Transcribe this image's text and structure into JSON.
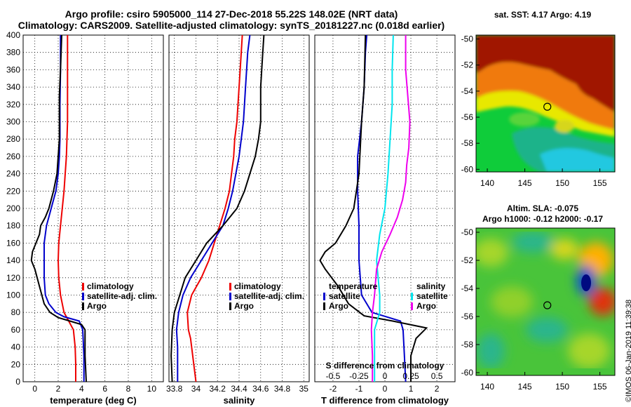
{
  "title_line1": "Argo profile: csiro 5905000_114 27-Dec-2018 55.22S 148.02E (NRT data)",
  "title_line2": "Climatology: CARS2009. Satellite-adjusted climatology: synTS_20181227.nc (0.018d earlier)",
  "credit": "©IMOS 06-Jan-2019 11:39:38",
  "colors": {
    "climatology": "#ee0000",
    "satellite": "#0000cc",
    "argo": "#000000",
    "t_diff": "#00e5ee",
    "s_diff": "#ee00ee"
  },
  "chart_data": [
    {
      "type": "line",
      "id": "temperature",
      "xlabel": "temperature (deg C)",
      "ylabel": "",
      "xlim": [
        -1,
        11
      ],
      "ylim": [
        400,
        0
      ],
      "xticks": [
        "0",
        "2",
        "4",
        "6",
        "8",
        "10"
      ],
      "xtick_values": [
        0,
        2,
        4,
        6,
        8,
        10
      ],
      "yticks": [
        "0",
        "20",
        "40",
        "60",
        "80",
        "100",
        "120",
        "140",
        "160",
        "180",
        "200",
        "220",
        "240",
        "260",
        "280",
        "300",
        "320",
        "340",
        "360",
        "380",
        "400"
      ],
      "ytick_values": [
        0,
        20,
        40,
        60,
        80,
        100,
        120,
        140,
        160,
        180,
        200,
        220,
        240,
        260,
        280,
        300,
        320,
        340,
        360,
        380,
        400
      ],
      "legend": [
        "climatology",
        "satellite-adj. clim.",
        "Argo"
      ],
      "series": [
        {
          "name": "climatology",
          "points": [
            [
              3.5,
              0
            ],
            [
              3.5,
              20
            ],
            [
              3.45,
              40
            ],
            [
              3.3,
              60
            ],
            [
              2.9,
              70
            ],
            [
              2.5,
              80
            ],
            [
              2.2,
              100
            ],
            [
              2.05,
              120
            ],
            [
              2.0,
              140
            ],
            [
              2.05,
              160
            ],
            [
              2.2,
              180
            ],
            [
              2.35,
              200
            ],
            [
              2.5,
              220
            ],
            [
              2.6,
              240
            ],
            [
              2.7,
              260
            ],
            [
              2.75,
              280
            ],
            [
              2.8,
              300
            ],
            [
              2.8,
              340
            ],
            [
              2.8,
              400
            ]
          ]
        },
        {
          "name": "satellite-adj. clim.",
          "points": [
            [
              4.2,
              0
            ],
            [
              4.2,
              30
            ],
            [
              4.1,
              60
            ],
            [
              3.8,
              70
            ],
            [
              2.5,
              75
            ],
            [
              1.8,
              80
            ],
            [
              1.2,
              90
            ],
            [
              0.9,
              100
            ],
            [
              0.8,
              120
            ],
            [
              0.8,
              160
            ],
            [
              1.0,
              180
            ],
            [
              1.4,
              200
            ],
            [
              1.8,
              220
            ],
            [
              2.0,
              240
            ],
            [
              2.1,
              260
            ],
            [
              2.15,
              280
            ],
            [
              2.15,
              320
            ],
            [
              2.2,
              360
            ],
            [
              2.2,
              400
            ]
          ]
        },
        {
          "name": "Argo",
          "points": [
            [
              4.4,
              0
            ],
            [
              4.3,
              30
            ],
            [
              4.3,
              60
            ],
            [
              4.0,
              66
            ],
            [
              3.0,
              70
            ],
            [
              2.0,
              74
            ],
            [
              1.3,
              80
            ],
            [
              0.8,
              90
            ],
            [
              0.4,
              110
            ],
            [
              0.0,
              130
            ],
            [
              -0.3,
              140
            ],
            [
              -0.2,
              150
            ],
            [
              0.1,
              160
            ],
            [
              0.4,
              170
            ],
            [
              0.5,
              180
            ],
            [
              0.9,
              190
            ],
            [
              1.2,
              200
            ],
            [
              1.6,
              220
            ],
            [
              1.9,
              240
            ],
            [
              2.0,
              260
            ],
            [
              2.1,
              280
            ],
            [
              2.1,
              300
            ],
            [
              2.1,
              330
            ],
            [
              2.2,
              360
            ],
            [
              2.3,
              400
            ]
          ]
        }
      ]
    },
    {
      "type": "line",
      "id": "salinity",
      "xlabel": "salinity",
      "ylabel": "",
      "xlim": [
        33.75,
        35.05
      ],
      "ylim": [
        400,
        0
      ],
      "xticks": [
        "33.8",
        "34",
        "34.2",
        "34.4",
        "34.6",
        "34.8",
        "35"
      ],
      "xtick_values": [
        33.8,
        34.0,
        34.2,
        34.4,
        34.6,
        34.8,
        35.0
      ],
      "legend": [
        "climatology",
        "satellite-adj. clim.",
        "Argo"
      ],
      "series": [
        {
          "name": "climatology",
          "points": [
            [
              34.0,
              0
            ],
            [
              33.98,
              20
            ],
            [
              33.95,
              50
            ],
            [
              33.93,
              60
            ],
            [
              33.92,
              80
            ],
            [
              33.96,
              100
            ],
            [
              34.05,
              120
            ],
            [
              34.12,
              140
            ],
            [
              34.17,
              160
            ],
            [
              34.22,
              180
            ],
            [
              34.27,
              200
            ],
            [
              34.31,
              220
            ],
            [
              34.33,
              240
            ],
            [
              34.35,
              260
            ],
            [
              34.36,
              280
            ],
            [
              34.38,
              300
            ],
            [
              34.4,
              340
            ],
            [
              34.42,
              380
            ],
            [
              34.43,
              400
            ]
          ]
        },
        {
          "name": "satellite-adj. clim.",
          "points": [
            [
              33.83,
              0
            ],
            [
              33.83,
              40
            ],
            [
              33.82,
              60
            ],
            [
              33.84,
              80
            ],
            [
              33.88,
              100
            ],
            [
              33.95,
              120
            ],
            [
              34.05,
              140
            ],
            [
              34.15,
              160
            ],
            [
              34.25,
              180
            ],
            [
              34.3,
              200
            ],
            [
              34.34,
              220
            ],
            [
              34.37,
              240
            ],
            [
              34.4,
              260
            ],
            [
              34.42,
              280
            ],
            [
              34.44,
              300
            ],
            [
              34.46,
              340
            ],
            [
              34.48,
              380
            ],
            [
              34.5,
              400
            ]
          ]
        },
        {
          "name": "Argo",
          "points": [
            [
              33.78,
              0
            ],
            [
              33.77,
              30
            ],
            [
              33.78,
              60
            ],
            [
              33.8,
              80
            ],
            [
              33.85,
              100
            ],
            [
              33.9,
              120
            ],
            [
              34.0,
              140
            ],
            [
              34.1,
              160
            ],
            [
              34.25,
              180
            ],
            [
              34.38,
              200
            ],
            [
              34.45,
              220
            ],
            [
              34.5,
              240
            ],
            [
              34.55,
              260
            ],
            [
              34.58,
              280
            ],
            [
              34.6,
              300
            ],
            [
              34.6,
              340
            ],
            [
              34.62,
              380
            ],
            [
              34.63,
              400
            ]
          ]
        }
      ]
    },
    {
      "type": "line",
      "id": "difference",
      "xlabel": "T difference from climatology",
      "xlabel2": "S difference from climatology",
      "xlim": [
        -2.7,
        2.7
      ],
      "ylim": [
        400,
        0
      ],
      "xticks": [
        "-2",
        "-1",
        "0",
        "1",
        "2"
      ],
      "xtick_values": [
        -2,
        -1,
        0,
        1,
        2
      ],
      "sticks": [
        "-0.5",
        "-0.25",
        "0",
        "0.25",
        "0.5"
      ],
      "legend_left_title": "temperature",
      "legend_right_title": "salinity",
      "legend_left": [
        "satellite",
        "Argo"
      ],
      "legend_right": [
        "satellite",
        "Argo"
      ],
      "series": [
        {
          "name": "T satellite",
          "points": [
            [
              0.8,
              0
            ],
            [
              0.75,
              30
            ],
            [
              0.7,
              60
            ],
            [
              0.6,
              70
            ],
            [
              -0.5,
              80
            ],
            [
              -0.9,
              100
            ],
            [
              -1.0,
              140
            ],
            [
              -1.0,
              180
            ],
            [
              -1.05,
              220
            ],
            [
              -1.05,
              260
            ],
            [
              -0.9,
              300
            ],
            [
              -0.8,
              340
            ],
            [
              -0.75,
              380
            ],
            [
              -0.7,
              400
            ]
          ]
        },
        {
          "name": "T Argo",
          "points": [
            [
              1.0,
              0
            ],
            [
              1.0,
              30
            ],
            [
              1.2,
              50
            ],
            [
              1.6,
              62
            ],
            [
              0.3,
              70
            ],
            [
              -0.8,
              76
            ],
            [
              -1.4,
              90
            ],
            [
              -1.8,
              110
            ],
            [
              -2.3,
              130
            ],
            [
              -2.5,
              140
            ],
            [
              -2.3,
              150
            ],
            [
              -1.9,
              160
            ],
            [
              -1.5,
              180
            ],
            [
              -1.2,
              200
            ],
            [
              -1.0,
              240
            ],
            [
              -0.9,
              300
            ],
            [
              -0.8,
              340
            ],
            [
              -0.75,
              400
            ]
          ]
        },
        {
          "name": "S satellite",
          "points": [
            [
              -0.1,
              0
            ],
            [
              -0.1,
              30
            ],
            [
              -0.1,
              60
            ],
            [
              -0.05,
              80
            ],
            [
              -0.05,
              100
            ],
            [
              -0.08,
              140
            ],
            [
              -0.05,
              170
            ],
            [
              0.0,
              200
            ],
            [
              0.03,
              240
            ],
            [
              0.05,
              280
            ],
            [
              0.07,
              320
            ],
            [
              0.07,
              360
            ],
            [
              0.08,
              400
            ]
          ]
        },
        {
          "name": "S Argo",
          "points": [
            [
              -0.12,
              0
            ],
            [
              -0.12,
              30
            ],
            [
              -0.13,
              60
            ],
            [
              -0.12,
              80
            ],
            [
              -0.1,
              100
            ],
            [
              -0.08,
              130
            ],
            [
              -0.03,
              150
            ],
            [
              0.05,
              170
            ],
            [
              0.12,
              190
            ],
            [
              0.17,
              210
            ],
            [
              0.2,
              230
            ],
            [
              0.21,
              250
            ],
            [
              0.23,
              270
            ],
            [
              0.24,
              300
            ],
            [
              0.22,
              330
            ],
            [
              0.2,
              360
            ],
            [
              0.2,
              400
            ]
          ]
        }
      ]
    },
    {
      "type": "heatmap",
      "id": "sst_map",
      "title": "sat. SST: 4.17 Argo: 4.19",
      "xlim": [
        138.5,
        157
      ],
      "ylim": [
        -60.2,
        -49.7
      ],
      "xticks": [
        "140",
        "145",
        "150",
        "155"
      ],
      "xtick_values": [
        140,
        145,
        150,
        155
      ],
      "yticks": [
        "-50",
        "-52",
        "-54",
        "-56",
        "-58",
        "-60"
      ],
      "ytick_values": [
        -50,
        -52,
        -54,
        -56,
        -58,
        -60
      ],
      "marker": {
        "lon": 148.0,
        "lat": -55.2
      }
    },
    {
      "type": "heatmap",
      "id": "sla_map",
      "title": "Altim. SLA: -0.075",
      "subtitle": "Argo h1000: -0.12 h2000: -0.17",
      "xlim": [
        138.5,
        157
      ],
      "ylim": [
        -60.2,
        -49.7
      ],
      "xticks": [
        "140",
        "145",
        "150",
        "155"
      ],
      "xtick_values": [
        140,
        145,
        150,
        155
      ],
      "yticks": [
        "-50",
        "-52",
        "-54",
        "-56",
        "-58",
        "-60"
      ],
      "ytick_values": [
        -50,
        -52,
        -54,
        -56,
        -58,
        -60
      ],
      "marker": {
        "lon": 148.0,
        "lat": -55.2
      }
    }
  ]
}
